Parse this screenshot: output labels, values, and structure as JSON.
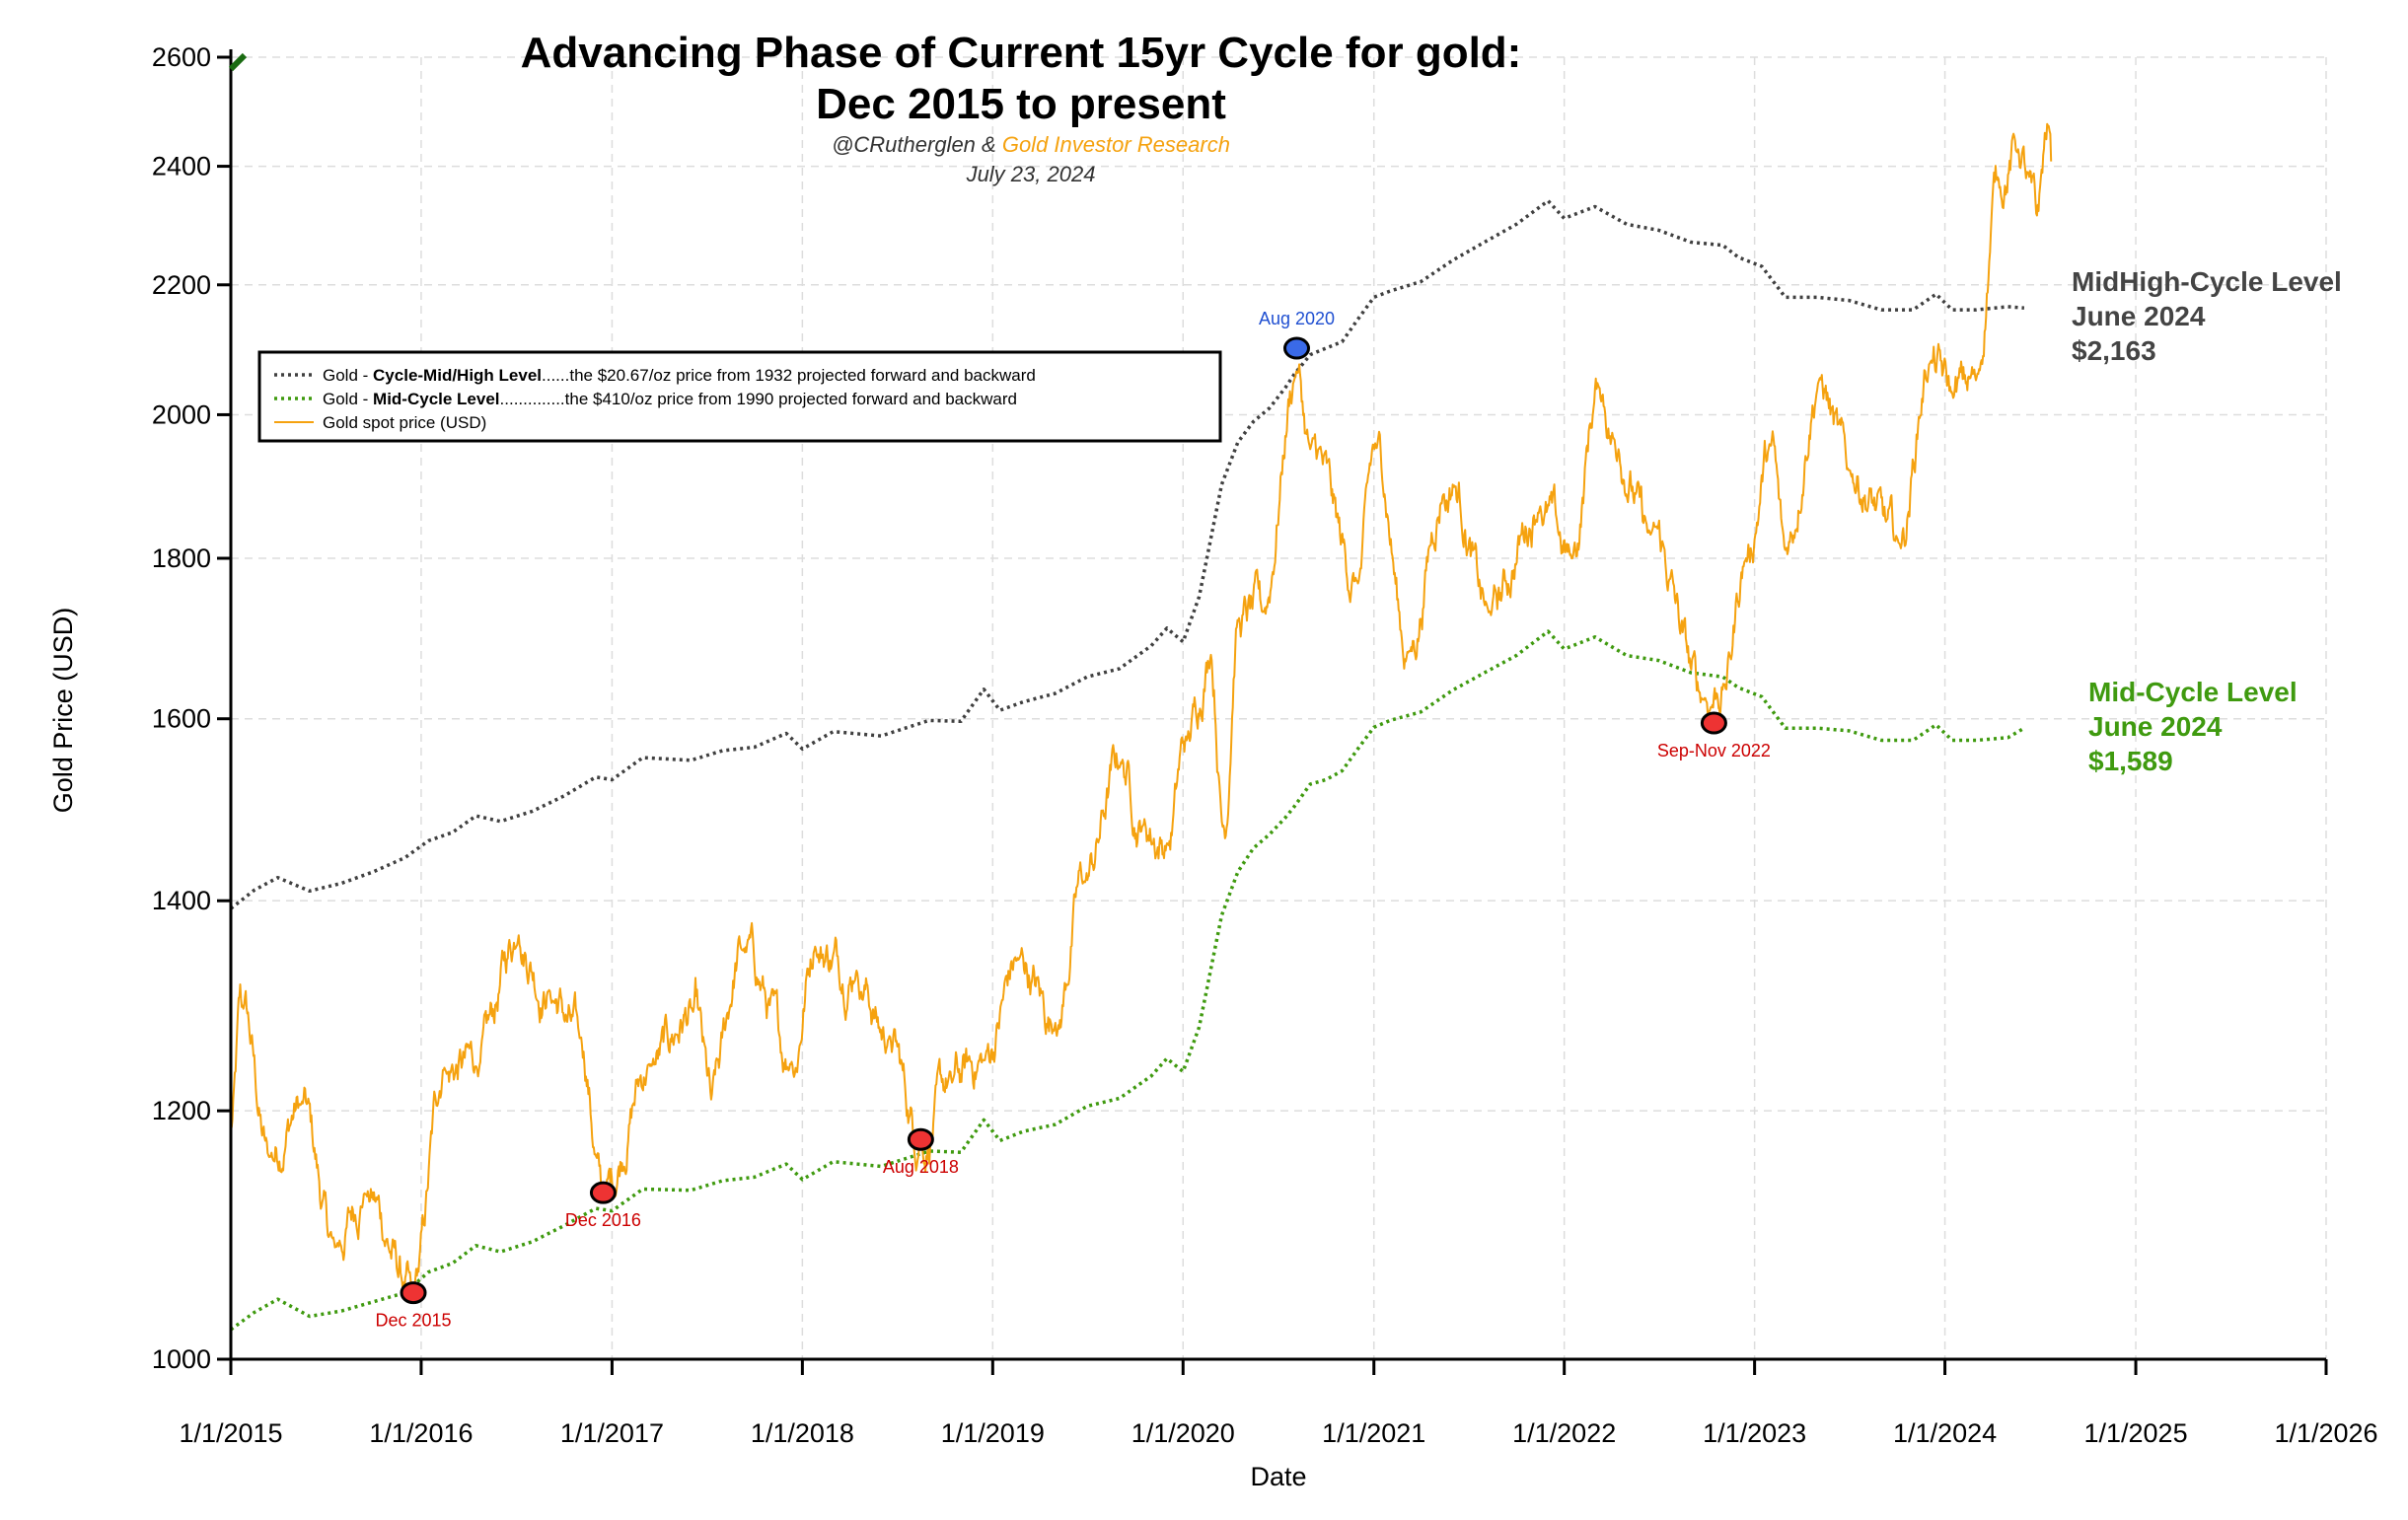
{
  "chart_data": {
    "type": "line",
    "title_line1": "Advancing Phase of Current 15yr Cycle for gold:",
    "title_line2": "Dec 2015 to present",
    "subtitle_handle": "@CRutherglen",
    "subtitle_amp": " & ",
    "subtitle_org": "Gold Investor Research",
    "date": "July 23, 2024",
    "xlabel": "Date",
    "ylabel": "Gold Price (USD)",
    "scale_y": "log",
    "ylim": [
      1000,
      2600
    ],
    "xlim": [
      "2015-01-01",
      "2026-01-01"
    ],
    "yticks": [
      1000,
      1200,
      1400,
      1600,
      1800,
      2000,
      2200,
      2400,
      2600
    ],
    "xticks": [
      "1/1/2015",
      "1/1/2016",
      "1/1/2017",
      "1/1/2018",
      "1/1/2019",
      "1/1/2020",
      "1/1/2021",
      "1/1/2022",
      "1/1/2023",
      "1/1/2024",
      "1/1/2025",
      "1/1/2026"
    ],
    "grid": true,
    "legend_position": "upper-left",
    "legend": [
      {
        "prefix": "Gold - ",
        "bold": "Cycle-Mid/High Level",
        "rest": "......the $20.67/oz price from 1932 projected forward and backward",
        "style": "dotted",
        "color": "#404040"
      },
      {
        "prefix": "Gold - ",
        "bold": "Mid-Cycle Level",
        "rest": "..............the $410/oz price from 1990 projected forward and backward",
        "style": "dotted",
        "color": "#3f9a0f"
      },
      {
        "prefix": "",
        "bold": "",
        "rest": "Gold spot price (USD)",
        "style": "solid",
        "color": "#f5a20f"
      }
    ],
    "series": [
      {
        "name": "Gold - Cycle-Mid/High Level",
        "color": "#404040",
        "dates": [
          "2015-01-01",
          "2015-02-15",
          "2015-04-01",
          "2015-06-01",
          "2015-08-01",
          "2015-10-01",
          "2015-12-01",
          "2016-01-15",
          "2016-03-01",
          "2016-04-15",
          "2016-06-01",
          "2016-08-01",
          "2016-10-01",
          "2016-12-01",
          "2017-01-01",
          "2017-03-01",
          "2017-06-01",
          "2017-08-01",
          "2017-10-01",
          "2017-12-01",
          "2018-01-01",
          "2018-03-01",
          "2018-06-01",
          "2018-09-01",
          "2018-11-01",
          "2018-12-15",
          "2019-01-15",
          "2019-03-01",
          "2019-05-01",
          "2019-07-01",
          "2019-09-01",
          "2019-11-01",
          "2019-12-01",
          "2020-01-01",
          "2020-02-01",
          "2020-03-15",
          "2020-04-15",
          "2020-05-15",
          "2020-06-15",
          "2020-07-15",
          "2020-08-01",
          "2020-09-01",
          "2020-10-01",
          "2020-11-01",
          "2020-12-01",
          "2021-01-01",
          "2021-02-01",
          "2021-04-01",
          "2021-06-01",
          "2021-08-01",
          "2021-10-01",
          "2021-12-01",
          "2022-01-01",
          "2022-03-01",
          "2022-05-01",
          "2022-07-01",
          "2022-09-01",
          "2022-11-01",
          "2022-12-01",
          "2023-01-15",
          "2023-03-01",
          "2023-05-01",
          "2023-07-01",
          "2023-09-01",
          "2023-11-01",
          "2023-12-15",
          "2024-01-15",
          "2024-03-01",
          "2024-05-01",
          "2024-06-01"
        ],
        "values": [
          1392,
          1411,
          1424,
          1410,
          1418,
          1430,
          1445,
          1463,
          1472,
          1490,
          1484,
          1495,
          1512,
          1533,
          1530,
          1555,
          1552,
          1563,
          1567,
          1583,
          1565,
          1585,
          1580,
          1598,
          1597,
          1635,
          1610,
          1620,
          1630,
          1650,
          1660,
          1688,
          1710,
          1693,
          1750,
          1900,
          1960,
          1990,
          2010,
          2040,
          2060,
          2090,
          2100,
          2110,
          2145,
          2180,
          2190,
          2205,
          2240,
          2270,
          2300,
          2340,
          2310,
          2330,
          2300,
          2290,
          2270,
          2265,
          2245,
          2230,
          2180,
          2180,
          2175,
          2160,
          2160,
          2185,
          2160,
          2160,
          2165,
          2163
        ]
      },
      {
        "name": "Gold - Mid-Cycle Level",
        "color": "#3f9a0f",
        "dates": [
          "2015-01-01",
          "2015-02-15",
          "2015-04-01",
          "2015-06-01",
          "2015-08-01",
          "2015-10-01",
          "2015-12-01",
          "2016-01-15",
          "2016-03-01",
          "2016-04-15",
          "2016-06-01",
          "2016-08-01",
          "2016-10-01",
          "2016-12-01",
          "2017-01-01",
          "2017-03-01",
          "2017-06-01",
          "2017-08-01",
          "2017-10-01",
          "2017-12-01",
          "2018-01-01",
          "2018-03-01",
          "2018-06-01",
          "2018-09-01",
          "2018-11-01",
          "2018-12-15",
          "2019-01-15",
          "2019-03-01",
          "2019-05-01",
          "2019-07-01",
          "2019-09-01",
          "2019-11-01",
          "2019-12-01",
          "2020-01-01",
          "2020-02-01",
          "2020-03-15",
          "2020-04-15",
          "2020-05-15",
          "2020-06-15",
          "2020-07-15",
          "2020-08-01",
          "2020-09-01",
          "2020-10-01",
          "2020-11-01",
          "2020-12-01",
          "2021-01-01",
          "2021-02-01",
          "2021-04-01",
          "2021-06-01",
          "2021-08-01",
          "2021-10-01",
          "2021-12-01",
          "2022-01-01",
          "2022-03-01",
          "2022-05-01",
          "2022-07-01",
          "2022-09-01",
          "2022-11-01",
          "2022-12-01",
          "2023-01-15",
          "2023-03-01",
          "2023-05-01",
          "2023-07-01",
          "2023-09-01",
          "2023-11-01",
          "2023-12-15",
          "2024-01-15",
          "2024-03-01",
          "2024-05-01",
          "2024-06-01"
        ],
        "values": [
          1022,
          1035,
          1045,
          1032,
          1036,
          1043,
          1050,
          1066,
          1073,
          1087,
          1082,
          1090,
          1103,
          1117,
          1115,
          1133,
          1132,
          1140,
          1143,
          1154,
          1141,
          1156,
          1152,
          1165,
          1164,
          1192,
          1174,
          1182,
          1188,
          1204,
          1211,
          1231,
          1247,
          1235,
          1276,
          1385,
          1430,
          1455,
          1470,
          1488,
          1500,
          1525,
          1530,
          1540,
          1565,
          1590,
          1598,
          1608,
          1634,
          1655,
          1676,
          1706,
          1684,
          1699,
          1676,
          1670,
          1655,
          1650,
          1637,
          1626,
          1589,
          1589,
          1586,
          1575,
          1575,
          1593,
          1575,
          1575,
          1578,
          1589
        ]
      }
    ],
    "spot_anchors": {
      "name": "Gold spot price (USD)",
      "color": "#f5a20f",
      "dates": [
        "2015-01-01",
        "2015-01-22",
        "2015-03-15",
        "2015-05-15",
        "2015-07-20",
        "2015-09-15",
        "2015-12-17",
        "2016-02-15",
        "2016-04-15",
        "2016-07-06",
        "2016-09-01",
        "2016-11-01",
        "2016-12-15",
        "2017-03-15",
        "2017-06-06",
        "2017-07-10",
        "2017-09-08",
        "2017-12-12",
        "2018-01-25",
        "2018-04-15",
        "2018-06-15",
        "2018-08-16",
        "2018-10-15",
        "2018-12-15",
        "2019-02-20",
        "2019-05-01",
        "2019-06-25",
        "2019-09-04",
        "2019-10-15",
        "2019-12-01",
        "2020-01-08",
        "2020-02-24",
        "2020-03-19",
        "2020-04-15",
        "2020-06-01",
        "2020-08-06",
        "2020-09-01",
        "2020-11-30",
        "2021-01-06",
        "2021-03-08",
        "2021-05-15",
        "2021-06-01",
        "2021-08-09",
        "2021-11-16",
        "2022-01-15",
        "2022-03-08",
        "2022-04-15",
        "2022-06-15",
        "2022-09-28",
        "2022-11-03",
        "2022-12-15",
        "2023-02-01",
        "2023-02-28",
        "2023-05-04",
        "2023-07-01",
        "2023-10-05",
        "2023-12-04",
        "2024-01-15",
        "2024-03-01",
        "2024-04-12",
        "2024-05-20",
        "2024-06-25",
        "2024-07-17",
        "2024-07-23"
      ],
      "values": [
        1185,
        1295,
        1160,
        1205,
        1085,
        1130,
        1050,
        1240,
        1240,
        1365,
        1310,
        1265,
        1130,
        1240,
        1290,
        1210,
        1350,
        1245,
        1355,
        1330,
        1265,
        1175,
        1225,
        1245,
        1340,
        1280,
        1420,
        1550,
        1480,
        1460,
        1575,
        1680,
        1480,
        1720,
        1730,
        2065,
        1950,
        1770,
        1950,
        1680,
        1890,
        1900,
        1730,
        1870,
        1800,
        2040,
        1950,
        1830,
        1625,
        1640,
        1800,
        1950,
        1810,
        2050,
        1920,
        1820,
        2080,
        2030,
        2050,
        2380,
        2430,
        2310,
        2470,
        2400
      ]
    },
    "annotations": [
      {
        "label": "Dec 2015",
        "date": "2015-12-17",
        "value": 1050,
        "color": "#cc0000",
        "fill": "#ee3333",
        "pos": "below"
      },
      {
        "label": "Dec 2016",
        "date": "2016-12-15",
        "value": 1130,
        "color": "#cc0000",
        "fill": "#ee3333",
        "pos": "below"
      },
      {
        "label": "Aug 2018",
        "date": "2018-08-16",
        "value": 1175,
        "color": "#cc0000",
        "fill": "#ee3333",
        "pos": "below"
      },
      {
        "label": "Aug 2020",
        "date": "2020-08-06",
        "value": 2100,
        "color": "#1f4fd1",
        "fill": "#3a6ae8",
        "pos": "above"
      },
      {
        "label": "Sep-Nov 2022",
        "date": "2022-10-15",
        "value": 1595,
        "color": "#cc0000",
        "fill": "#ee3333",
        "pos": "below"
      }
    ],
    "side_labels": [
      {
        "lines": [
          "MidHigh-Cycle Level",
          "June 2024",
          "$2,163"
        ],
        "color": "#444444"
      },
      {
        "lines": [
          "Mid-Cycle Level",
          "June 2024",
          "$1,589"
        ],
        "color": "#3f9a0f"
      }
    ]
  }
}
